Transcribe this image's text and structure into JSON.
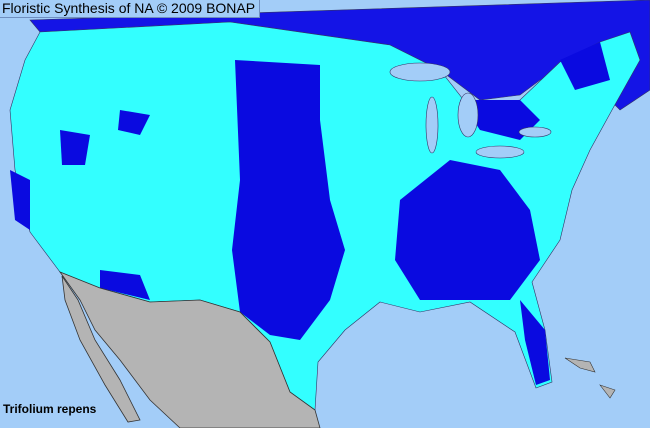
{
  "header": {
    "title": "Floristic Synthesis of NA © 2009 BONAP"
  },
  "map": {
    "species": "Trifolium repens",
    "colors": {
      "ocean": "#a3cdf8",
      "canada": "#1414e6",
      "present": "#33ffff",
      "present_dark": "#0a0ae0",
      "mexico": "#b4b4b4",
      "borders": "#333366"
    }
  }
}
